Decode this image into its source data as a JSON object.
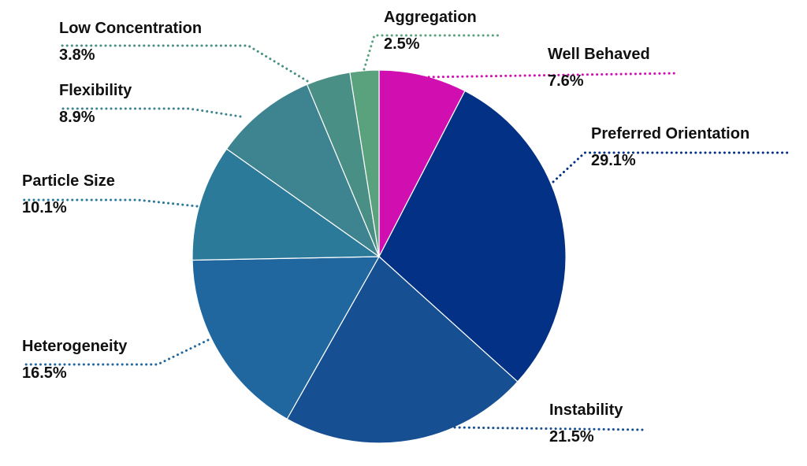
{
  "chart_data": {
    "type": "pie",
    "categories": [
      "Well Behaved",
      "Preferred Orientation",
      "Instability",
      "Heterogeneity",
      "Particle Size",
      "Flexibility",
      "Low Concentration",
      "Aggregation"
    ],
    "values": [
      7.6,
      29.1,
      21.5,
      16.5,
      10.1,
      8.9,
      3.8,
      2.5
    ],
    "value_labels": [
      "7.6%",
      "29.1%",
      "21.5%",
      "16.5%",
      "10.1%",
      "8.9%",
      "3.8%",
      "2.5%"
    ],
    "colors": [
      "#d10eb0",
      "#033185",
      "#164f92",
      "#20679f",
      "#2b7a9a",
      "#3d8490",
      "#4a8f86",
      "#5aa27d"
    ]
  }
}
